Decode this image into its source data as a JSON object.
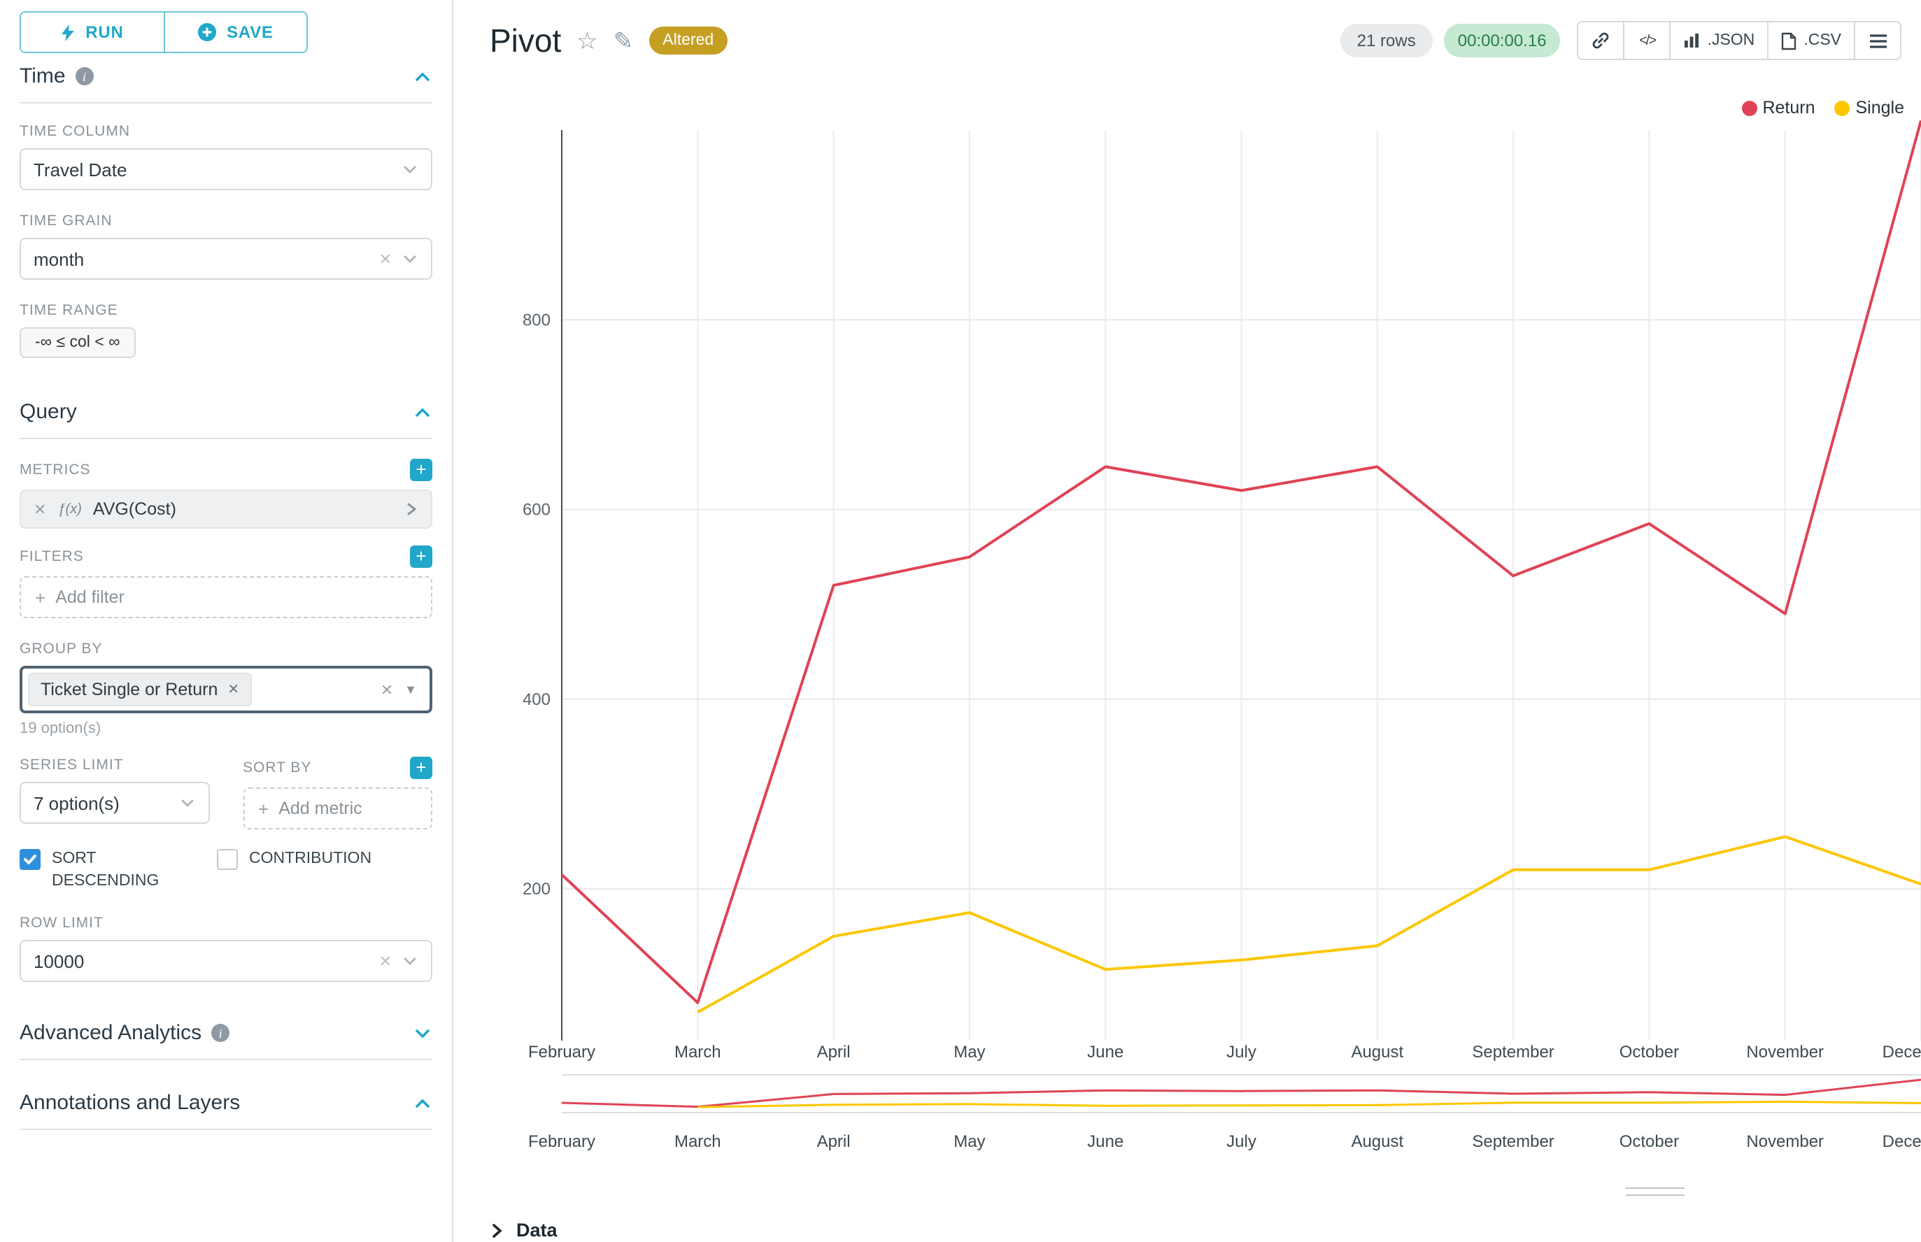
{
  "colors": {
    "accent": "#20a7c9",
    "altered_badge_bg": "#c59f22",
    "checkbox_checked": "#2e8fdd",
    "timer_badge_bg": "#c5e9d2",
    "timer_badge_text": "#2a7d4f"
  },
  "sidebar": {
    "run_label": "RUN",
    "save_label": "SAVE",
    "time": {
      "title": "Time",
      "column_label": "TIME COLUMN",
      "column_value": "Travel Date",
      "grain_label": "TIME GRAIN",
      "grain_value": "month",
      "range_label": "TIME RANGE",
      "range_value": "-∞ ≤ col < ∞"
    },
    "query": {
      "title": "Query",
      "metrics_label": "METRICS",
      "metric_fx": "ƒ(x)",
      "metric_value": "AVG(Cost)",
      "filters_label": "FILTERS",
      "add_filter": "Add filter",
      "group_by_label": "GROUP BY",
      "group_by_value": "Ticket Single or Return",
      "group_by_hint": "19 option(s)",
      "series_limit_label": "SERIES LIMIT",
      "series_limit_value": "7 option(s)",
      "sort_by_label": "SORT BY",
      "add_metric": "Add metric",
      "sort_descending": "SORT DESCENDING",
      "contribution": "CONTRIBUTION",
      "row_limit_label": "ROW LIMIT",
      "row_limit_value": "10000"
    },
    "advanced": {
      "title": "Advanced Analytics"
    },
    "annotations": {
      "title": "Annotations and Layers"
    }
  },
  "header": {
    "title": "Pivot",
    "altered": "Altered",
    "rows": "21 rows",
    "timer": "00:00:00.16",
    "json": ".JSON",
    "csv": ".CSV"
  },
  "chart_data": {
    "type": "line",
    "x": [
      "February",
      "March",
      "April",
      "May",
      "June",
      "July",
      "August",
      "September",
      "October",
      "November",
      "December"
    ],
    "series": [
      {
        "name": "Return",
        "color": "#E04355",
        "values": [
          215,
          80,
          520,
          550,
          645,
          620,
          645,
          530,
          585,
          490,
          1010
        ]
      },
      {
        "name": "Single",
        "color": "#FCC700",
        "values": [
          null,
          70,
          150,
          175,
          115,
          125,
          140,
          220,
          220,
          255,
          205
        ]
      }
    ],
    "yticks": [
      200,
      400,
      600,
      800
    ],
    "ylim": [
      40,
      1000
    ],
    "grid": true,
    "legend_position": "top-right"
  },
  "data_panel": {
    "title": "Data"
  }
}
